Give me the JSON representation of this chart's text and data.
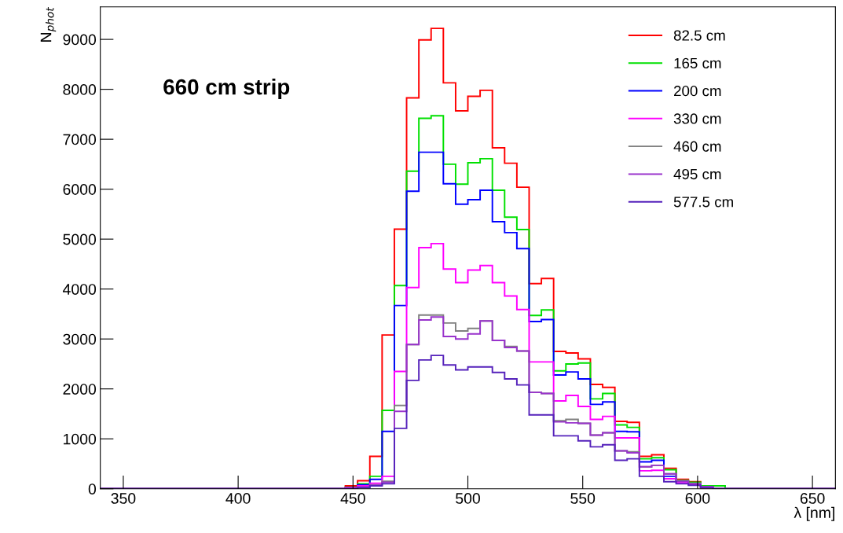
{
  "chart_data": {
    "type": "histogram",
    "xlabel": "λ [nm]",
    "ylabel": "N$_{phot}$",
    "annotations": [
      "660 cm strip"
    ],
    "xlim": [
      340,
      660
    ],
    "xticks": [
      350,
      400,
      450,
      500,
      550,
      600,
      650
    ],
    "ylim": [
      0,
      9650
    ],
    "yticks": [
      0,
      1000,
      2000,
      3000,
      4000,
      5000,
      6000,
      7000,
      8000,
      9000
    ],
    "legend": "top right",
    "grid": false,
    "bins": [
      340,
      345.33,
      350.67,
      356,
      361.33,
      366.67,
      372,
      377.33,
      382.67,
      388,
      393.33,
      398.67,
      404,
      409.33,
      414.67,
      420,
      425.33,
      430.67,
      436,
      441.33,
      446.67,
      452,
      457.33,
      462.67,
      468,
      473.33,
      478.67,
      484,
      489.33,
      494.67,
      500,
      505.33,
      510.67,
      516,
      521.33,
      526.67,
      532,
      537.33,
      542.67,
      548,
      553.33,
      558.67,
      564,
      569.33,
      574.67,
      580,
      585.33,
      590.67,
      596,
      601.33,
      606.67,
      612,
      617.33,
      622.67,
      628,
      633.33,
      638.67,
      644,
      649.33,
      654.67,
      660
    ],
    "series": [
      {
        "name": "82.5 cm",
        "color": "#ff0000",
        "values": [
          0,
          0,
          0,
          0,
          0,
          0,
          0,
          0,
          0,
          0,
          0,
          0,
          0,
          0,
          0,
          0,
          0,
          0,
          0,
          0,
          60,
          160,
          650,
          3080,
          5200,
          7830,
          8990,
          9220,
          8130,
          7570,
          7860,
          7980,
          6830,
          6520,
          6040,
          4110,
          4210,
          2750,
          2720,
          2600,
          2090,
          2030,
          1350,
          1330,
          650,
          680,
          410,
          190,
          140,
          20,
          0,
          0,
          0,
          0,
          0,
          0,
          0,
          0,
          0,
          0
        ]
      },
      {
        "name": "165 cm",
        "color": "#00e000",
        "values": [
          0,
          0,
          0,
          0,
          0,
          0,
          0,
          0,
          0,
          0,
          0,
          0,
          0,
          0,
          0,
          0,
          0,
          0,
          0,
          0,
          30,
          100,
          250,
          1570,
          4070,
          6360,
          7420,
          7470,
          6500,
          6100,
          6530,
          6610,
          5980,
          5440,
          5190,
          3470,
          3580,
          2360,
          2500,
          2520,
          1800,
          1910,
          1280,
          1230,
          600,
          620,
          380,
          170,
          130,
          60,
          60,
          0,
          0,
          0,
          0,
          0,
          0,
          0,
          0,
          0
        ]
      },
      {
        "name": "200 cm",
        "color": "#0000ff",
        "values": [
          0,
          0,
          0,
          0,
          0,
          0,
          0,
          0,
          0,
          0,
          0,
          0,
          0,
          0,
          0,
          0,
          0,
          0,
          0,
          0,
          20,
          80,
          190,
          1150,
          3670,
          5960,
          6740,
          6740,
          6110,
          5700,
          5790,
          5980,
          5350,
          5130,
          4810,
          3350,
          3390,
          2280,
          2340,
          2200,
          1690,
          1740,
          1150,
          1140,
          540,
          570,
          250,
          150,
          100,
          40,
          0,
          0,
          0,
          0,
          0,
          0,
          0,
          0,
          0,
          0
        ]
      },
      {
        "name": "330 cm",
        "color": "#ff00ff",
        "values": [
          0,
          0,
          0,
          0,
          0,
          0,
          0,
          0,
          0,
          0,
          0,
          0,
          0,
          0,
          0,
          0,
          0,
          0,
          0,
          0,
          20,
          60,
          110,
          250,
          2350,
          4030,
          4830,
          4910,
          4400,
          4130,
          4380,
          4470,
          4130,
          3860,
          3590,
          2540,
          2540,
          1760,
          1870,
          1650,
          1390,
          1450,
          1020,
          1020,
          360,
          370,
          200,
          120,
          90,
          30,
          0,
          0,
          0,
          0,
          0,
          0,
          0,
          0,
          0,
          0
        ]
      },
      {
        "name": "460 cm",
        "color": "#808080",
        "values": [
          0,
          0,
          0,
          0,
          0,
          0,
          0,
          0,
          0,
          0,
          0,
          0,
          0,
          0,
          0,
          0,
          0,
          0,
          0,
          0,
          0,
          30,
          80,
          150,
          1670,
          2890,
          3480,
          3480,
          3320,
          3160,
          3210,
          3360,
          2970,
          2850,
          2760,
          1930,
          1910,
          1360,
          1390,
          1310,
          1075,
          1120,
          760,
          740,
          440,
          470,
          300,
          160,
          110,
          40,
          0,
          0,
          0,
          0,
          0,
          0,
          0,
          0,
          0,
          0
        ]
      },
      {
        "name": "495 cm",
        "color": "#9933cc",
        "values": [
          0,
          0,
          0,
          0,
          0,
          0,
          0,
          0,
          0,
          0,
          0,
          0,
          0,
          0,
          0,
          0,
          0,
          0,
          0,
          0,
          0,
          30,
          70,
          130,
          1550,
          2890,
          3380,
          3440,
          3050,
          3000,
          3100,
          3360,
          2970,
          2830,
          2760,
          1930,
          1910,
          1340,
          1320,
          1310,
          1075,
          1120,
          760,
          720,
          440,
          470,
          300,
          150,
          100,
          40,
          0,
          0,
          0,
          0,
          0,
          0,
          0,
          0,
          0,
          0
        ]
      },
      {
        "name": "577.5 cm",
        "color": "#5522bb",
        "values": [
          0,
          0,
          0,
          0,
          0,
          0,
          0,
          0,
          0,
          0,
          0,
          0,
          0,
          0,
          0,
          0,
          0,
          0,
          0,
          0,
          0,
          20,
          60,
          100,
          1210,
          2170,
          2580,
          2670,
          2480,
          2380,
          2440,
          2440,
          2330,
          2200,
          2080,
          1480,
          1480,
          1060,
          1060,
          960,
          840,
          880,
          570,
          600,
          250,
          250,
          140,
          100,
          70,
          20,
          0,
          0,
          0,
          0,
          0,
          0,
          0,
          0,
          0,
          0
        ]
      }
    ]
  }
}
